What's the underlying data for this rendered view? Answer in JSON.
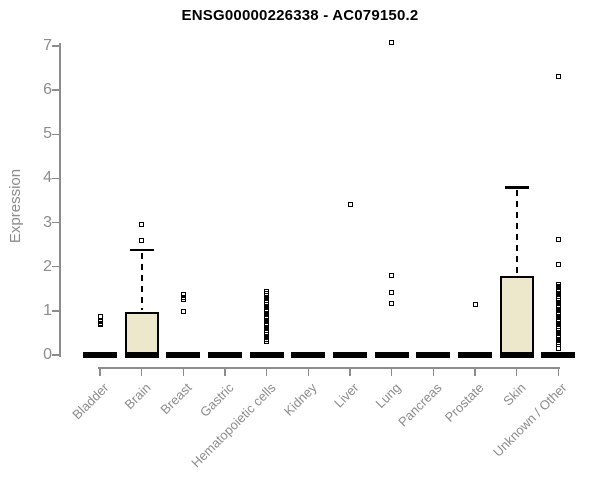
{
  "chart_data": {
    "type": "boxplot",
    "title": "ENSG00000226338 - AC079150.2",
    "ylabel": "Expression",
    "ylim": [
      0,
      7
    ],
    "yticks": [
      0,
      1,
      2,
      3,
      4,
      5,
      6,
      7
    ],
    "grid": false,
    "legend": "none",
    "categories": [
      "Bladder",
      "Brain",
      "Breast",
      "Gastric",
      "Hematopoietic cells",
      "Kidney",
      "Liver",
      "Lung",
      "Pancreas",
      "Prostate",
      "Skin",
      "Unknown / Other"
    ],
    "boxes": [
      {
        "category": "Bladder",
        "q1": 0,
        "median": 0,
        "q3": 0,
        "whisker_low": 0,
        "whisker_high": 0,
        "outliers": [
          0.87,
          0.76,
          0.72,
          0.68
        ]
      },
      {
        "category": "Brain",
        "q1": 0,
        "median": 0,
        "q3": 0.97,
        "whisker_low": 0,
        "whisker_high": 2.38,
        "outliers": [
          2.95,
          2.59
        ]
      },
      {
        "category": "Breast",
        "q1": 0,
        "median": 0,
        "q3": 0,
        "whisker_low": 0,
        "whisker_high": 0,
        "outliers": [
          1.37,
          1.31,
          1.26,
          0.99
        ]
      },
      {
        "category": "Gastric",
        "q1": 0,
        "median": 0,
        "q3": 0,
        "whisker_low": 0,
        "whisker_high": 0,
        "outliers": []
      },
      {
        "category": "Hematopoietic cells",
        "q1": 0,
        "median": 0,
        "q3": 0,
        "whisker_low": 0,
        "whisker_high": 0,
        "outliers": [
          1.43,
          1.39,
          1.35,
          1.31,
          1.27,
          1.23,
          1.19,
          1.15,
          1.11,
          1.07,
          1.03,
          0.99,
          0.95,
          0.91,
          0.87,
          0.83,
          0.79,
          0.75,
          0.71,
          0.67,
          0.63,
          0.59,
          0.55,
          0.51,
          0.47,
          0.43,
          0.39,
          0.35,
          0.31
        ]
      },
      {
        "category": "Kidney",
        "q1": 0,
        "median": 0,
        "q3": 0,
        "whisker_low": 0,
        "whisker_high": 0,
        "outliers": []
      },
      {
        "category": "Liver",
        "q1": 0,
        "median": 0,
        "q3": 0,
        "whisker_low": 0,
        "whisker_high": 0,
        "outliers": [
          3.41
        ]
      },
      {
        "category": "Lung",
        "q1": 0,
        "median": 0,
        "q3": 0,
        "whisker_low": 0,
        "whisker_high": 0,
        "outliers": [
          7.09,
          1.81,
          1.41,
          1.17
        ]
      },
      {
        "category": "Pancreas",
        "q1": 0,
        "median": 0,
        "q3": 0,
        "whisker_low": 0,
        "whisker_high": 0,
        "outliers": []
      },
      {
        "category": "Prostate",
        "q1": 0,
        "median": 0,
        "q3": 0,
        "whisker_low": 0,
        "whisker_high": 0,
        "outliers": [
          1.15
        ]
      },
      {
        "category": "Skin",
        "q1": 0,
        "median": 0,
        "q3": 1.78,
        "whisker_low": 0,
        "whisker_high": 3.8,
        "outliers": []
      },
      {
        "category": "Unknown / Other",
        "q1": 0,
        "median": 0,
        "q3": 0,
        "whisker_low": 0,
        "whisker_high": 0,
        "outliers": [
          6.3,
          2.62,
          2.04,
          1.6,
          1.56,
          1.52,
          1.48,
          1.44,
          1.4,
          1.36,
          1.32,
          1.28,
          1.24,
          1.2,
          1.16,
          1.12,
          1.08,
          1.04,
          1.0,
          0.96,
          0.92,
          0.88,
          0.84,
          0.8,
          0.76,
          0.72,
          0.68,
          0.64,
          0.6,
          0.56,
          0.52,
          0.48,
          0.44,
          0.4,
          0.36,
          0.32,
          0.28,
          0.24,
          0.15
        ]
      }
    ],
    "colors": {
      "box_fill": "#EDE8CC",
      "box_border": "#000000",
      "median": "#000000",
      "whisker": "#000000",
      "outlier": "#000000",
      "axis": "#8C8C8C",
      "tick_label": "#8C8C8C",
      "title": "#000000",
      "background": "#FFFFFF"
    }
  }
}
